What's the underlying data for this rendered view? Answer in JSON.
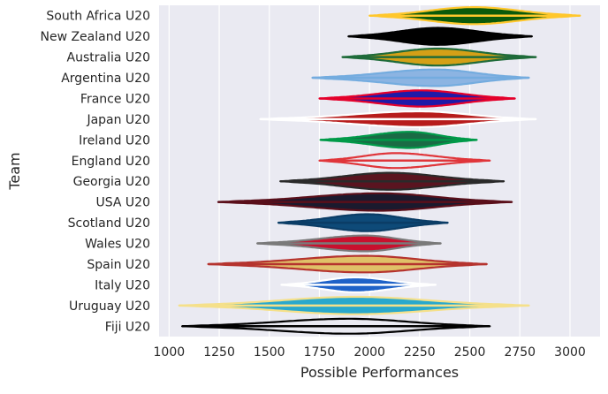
{
  "chart_data": {
    "type": "violin",
    "title": "",
    "xlabel": "Possible Performances",
    "ylabel": "Team",
    "xlim": [
      950,
      3150
    ],
    "xticks": [
      1000,
      1250,
      1500,
      1750,
      2000,
      2250,
      2500,
      2750,
      3000
    ],
    "grid": true,
    "background": "#eaeaf2",
    "grid_color": "#ffffff",
    "series": [
      {
        "name": "South Africa U20",
        "min": 2000,
        "max": 3050,
        "median": 2520,
        "peak_width": 0.82,
        "fill": "#0b5a0b",
        "line": "#ffc72c"
      },
      {
        "name": "New Zealand U20",
        "min": 1895,
        "max": 2810,
        "median": 2340,
        "peak_width": 0.82,
        "fill": "#000000",
        "line": "#000000"
      },
      {
        "name": "Australia U20",
        "min": 1865,
        "max": 2830,
        "median": 2340,
        "peak_width": 0.82,
        "fill": "#d4a017",
        "line": "#1f6b3a"
      },
      {
        "name": "Argentina U20",
        "min": 1715,
        "max": 2795,
        "median": 2330,
        "peak_width": 0.8,
        "fill": "#8cb4e2",
        "line": "#74acdf"
      },
      {
        "name": "France U20",
        "min": 1750,
        "max": 2725,
        "median": 2260,
        "peak_width": 0.78,
        "fill": "#1f1aa8",
        "line": "#e4002b"
      },
      {
        "name": "Japan U20",
        "min": 1455,
        "max": 2830,
        "median": 2250,
        "peak_width": 0.76,
        "fill": "#b71c1c",
        "line": "#ffffff"
      },
      {
        "name": "Ireland U20",
        "min": 1755,
        "max": 2535,
        "median": 2200,
        "peak_width": 0.78,
        "fill": "#1a6b45",
        "line": "#009a49"
      },
      {
        "name": "England U20",
        "min": 1750,
        "max": 2600,
        "median": 2130,
        "peak_width": 0.72,
        "fill": "#eaeaf2",
        "line": "#e0353a"
      },
      {
        "name": "Georgia U20",
        "min": 1555,
        "max": 2670,
        "median": 2100,
        "peak_width": 0.82,
        "fill": "#5a1420",
        "line": "#2a2a2a"
      },
      {
        "name": "USA U20",
        "min": 1245,
        "max": 2710,
        "median": 2050,
        "peak_width": 0.84,
        "fill": "#1a1a2e",
        "line": "#5a0f1a"
      },
      {
        "name": "Scotland U20",
        "min": 1545,
        "max": 2390,
        "median": 1990,
        "peak_width": 0.82,
        "fill": "#0e4a78",
        "line": "#0b3d66"
      },
      {
        "name": "Wales U20",
        "min": 1440,
        "max": 2355,
        "median": 1980,
        "peak_width": 0.76,
        "fill": "#c8102e",
        "line": "#7a7a7a"
      },
      {
        "name": "Spain U20",
        "min": 1195,
        "max": 2585,
        "median": 1980,
        "peak_width": 0.8,
        "fill": "#e0c068",
        "line": "#b5332e"
      },
      {
        "name": "Italy U20",
        "min": 1560,
        "max": 2330,
        "median": 1930,
        "peak_width": 0.72,
        "fill": "#1e62c8",
        "line": "#ffffff"
      },
      {
        "name": "Uruguay U20",
        "min": 1050,
        "max": 2795,
        "median": 1930,
        "peak_width": 0.84,
        "fill": "#29a8cc",
        "line": "#f5e08a"
      },
      {
        "name": "Fiji U20",
        "min": 1065,
        "max": 2600,
        "median": 1900,
        "peak_width": 0.72,
        "fill": "#eaeaf2",
        "line": "#000000"
      }
    ]
  }
}
